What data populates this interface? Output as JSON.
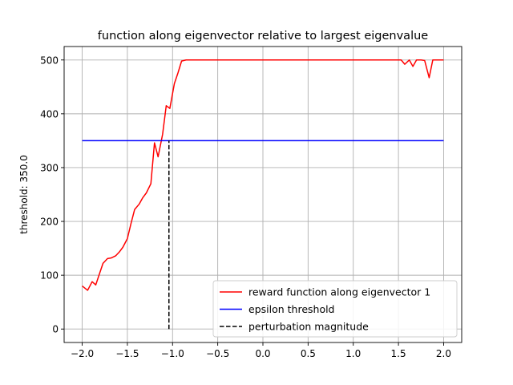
{
  "chart_data": {
    "type": "line",
    "title": "function along eigenvector relative to largest eigenvalue",
    "xlabel": "",
    "ylabel": "threshold: 350.0",
    "xlim": [
      -2.2,
      2.2
    ],
    "ylim": [
      -25,
      525
    ],
    "xticks": [
      -2.0,
      -1.5,
      -1.0,
      -0.5,
      0.0,
      0.5,
      1.0,
      1.5,
      2.0
    ],
    "xtick_labels": [
      "−2.0",
      "−1.5",
      "−1.0",
      "−0.5",
      "0.0",
      "0.5",
      "1.0",
      "1.5",
      "2.0"
    ],
    "yticks": [
      0,
      100,
      200,
      300,
      400,
      500
    ],
    "ytick_labels": [
      "0",
      "100",
      "200",
      "300",
      "400",
      "500"
    ],
    "grid": true,
    "legend_position": "lower-right",
    "series": [
      {
        "name": "reward function along eigenvector 1",
        "color": "#ff0000",
        "style": "solid",
        "x": [
          -2.0,
          -1.94,
          -1.89,
          -1.85,
          -1.81,
          -1.77,
          -1.72,
          -1.68,
          -1.63,
          -1.59,
          -1.55,
          -1.5,
          -1.46,
          -1.42,
          -1.37,
          -1.33,
          -1.29,
          -1.24,
          -1.2,
          -1.16,
          -1.11,
          -1.07,
          -1.03,
          -0.98,
          -0.94,
          -0.9,
          -0.85,
          -0.81,
          -0.77,
          -0.72,
          1.53,
          1.57,
          1.62,
          1.66,
          1.7,
          1.75,
          1.79,
          1.84,
          1.88,
          1.92,
          1.96,
          2.0
        ],
        "y": [
          80,
          72,
          88,
          82,
          102,
          122,
          131,
          132,
          136,
          143,
          152,
          168,
          196,
          222,
          232,
          244,
          253,
          270,
          346,
          320,
          362,
          415,
          410,
          456,
          476,
          498,
          500,
          500,
          500,
          500,
          500,
          492,
          500,
          488,
          500,
          500,
          499,
          467,
          500,
          500,
          500,
          500
        ]
      },
      {
        "name": "epsilon threshold",
        "color": "#0000ff",
        "style": "solid",
        "x": [
          -2.0,
          2.0
        ],
        "y": [
          350,
          350
        ]
      },
      {
        "name": "perturbation magnitude",
        "color": "#000000",
        "style": "dashed",
        "x": [
          -1.04,
          -1.04
        ],
        "y": [
          0,
          350
        ]
      }
    ]
  }
}
